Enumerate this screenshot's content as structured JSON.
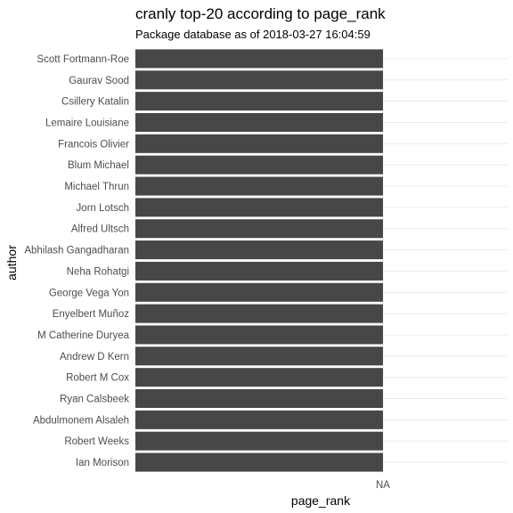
{
  "chart_data": {
    "type": "bar",
    "orientation": "horizontal",
    "title": "cranly top-20 according to page_rank",
    "subtitle": "Package database as of 2018-03-27 16:04:59",
    "xlabel": "page_rank",
    "ylabel": "author",
    "x_tick_labels": [
      "NA"
    ],
    "categories": [
      "Scott Fortmann-Roe",
      "Gaurav Sood",
      "Csillery Katalin",
      "Lemaire Louisiane",
      "Francois Olivier",
      "Blum Michael",
      "Michael Thrun",
      "Jorn Lotsch",
      "Alfred Ultsch",
      "Abhilash Gangadharan",
      "Neha Rohatgi",
      "George Vega Yon",
      "Enyelbert Muñoz",
      "M Catherine Duryea",
      "Andrew D Kern",
      "Robert M Cox",
      "Ryan Calsbeek",
      "Abdulmonem Alsaleh",
      "Robert Weeks",
      "Ian Morison"
    ],
    "values": [
      null,
      null,
      null,
      null,
      null,
      null,
      null,
      null,
      null,
      null,
      null,
      null,
      null,
      null,
      null,
      null,
      null,
      null,
      null,
      null
    ],
    "bar_color": "#474747",
    "grid": true,
    "grid_color": "#ebebeb",
    "legend": "none"
  }
}
